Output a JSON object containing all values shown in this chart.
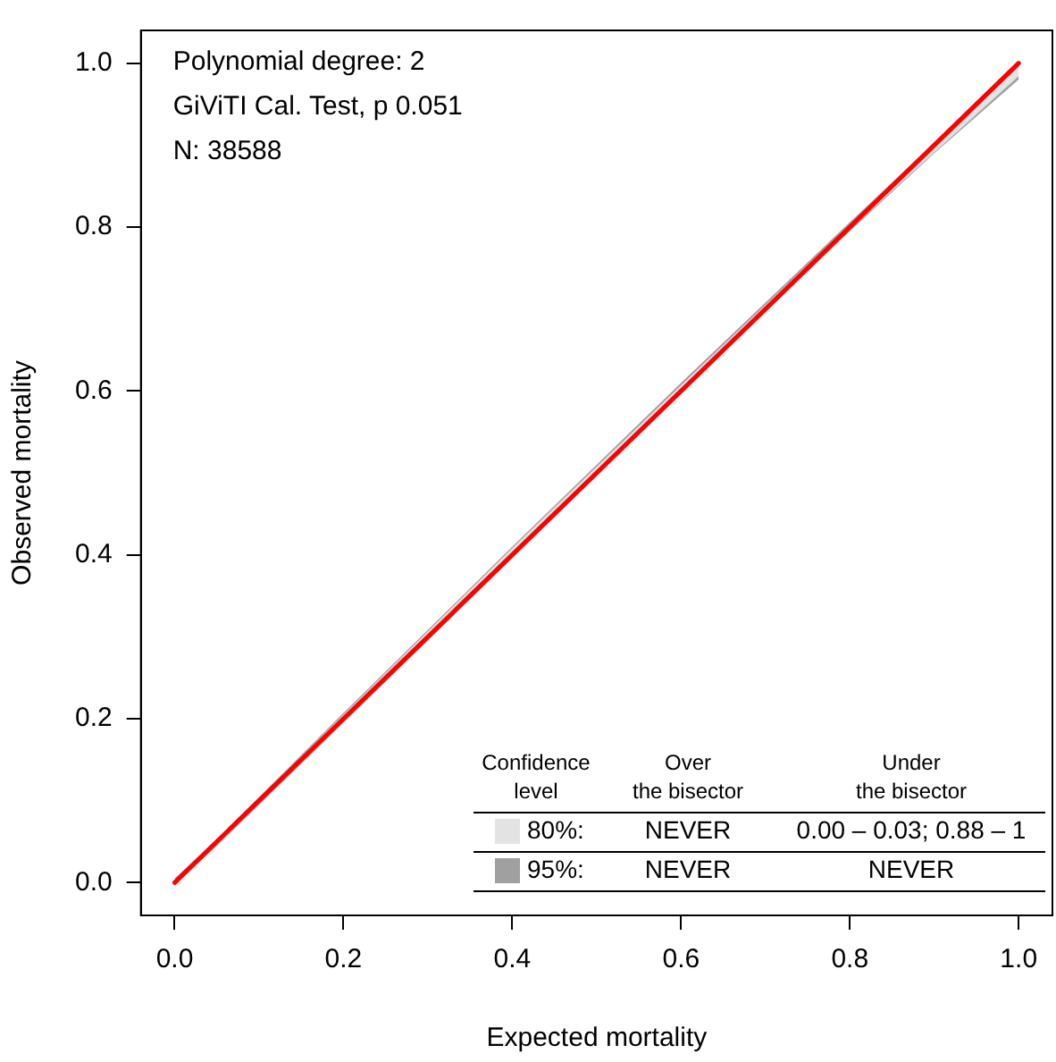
{
  "chart_data": {
    "type": "line",
    "xlabel": "Expected mortality",
    "ylabel": "Observed mortality",
    "x": [
      0,
      0.05,
      0.2,
      0.4,
      0.6,
      0.8,
      0.9,
      1
    ],
    "xlim": [
      -0.04,
      1.04
    ],
    "ylim": [
      -0.04,
      1.04
    ],
    "xticks": [
      {
        "value": 0,
        "label": "0.0"
      },
      {
        "value": 0.2,
        "label": "0.2"
      },
      {
        "value": 0.4,
        "label": "0.4"
      },
      {
        "value": 0.6,
        "label": "0.6"
      },
      {
        "value": 0.8,
        "label": "0.8"
      },
      {
        "value": 1,
        "label": "1.0"
      }
    ],
    "yticks": [
      {
        "value": 0,
        "label": "0.0"
      },
      {
        "value": 0.2,
        "label": "0.2"
      },
      {
        "value": 0.4,
        "label": "0.4"
      },
      {
        "value": 0.6,
        "label": "0.6"
      },
      {
        "value": 0.8,
        "label": "0.8"
      },
      {
        "value": 1,
        "label": "1.0"
      }
    ],
    "series": [
      {
        "name": "80%:",
        "color": "#e3e3e3",
        "values": [
          null,
          null,
          null,
          null,
          null,
          null,
          null,
          null
        ],
        "lower": [
          -0.002,
          0.046,
          0.197,
          0.398,
          0.599,
          0.797,
          0.891,
          0.984
        ],
        "upper": [
          -0.001,
          0.052,
          0.205,
          0.408,
          0.607,
          0.803,
          0.898,
          0.996
        ]
      },
      {
        "name": "95%:",
        "color": "#a0a0a0",
        "values": [
          null,
          null,
          null,
          null,
          null,
          null,
          null,
          null
        ],
        "lower": [
          -0.003,
          0.045,
          0.195,
          0.396,
          0.597,
          0.795,
          0.89,
          0.98
        ],
        "upper": [
          0.005,
          0.053,
          0.207,
          0.41,
          0.61,
          0.806,
          0.903,
          1.0
        ]
      },
      {
        "color": "#ff0000",
        "values": [
          0,
          0.05,
          0.2,
          0.4,
          0.6,
          0.8,
          0.9,
          1
        ]
      }
    ],
    "annotations": [
      "Polynomial degree: 2",
      "GiViTI Cal. Test, p 0.051",
      "N: 38588",
      "Confidence level",
      "Over the bisector",
      "Under the bisector",
      "NEVER",
      "0.00 – 0.03; 0.88 – 1",
      "NEVER",
      "NEVER"
    ],
    "legend": "bottom",
    "grid": false,
    "marker": "none",
    "line_style": "solid"
  }
}
